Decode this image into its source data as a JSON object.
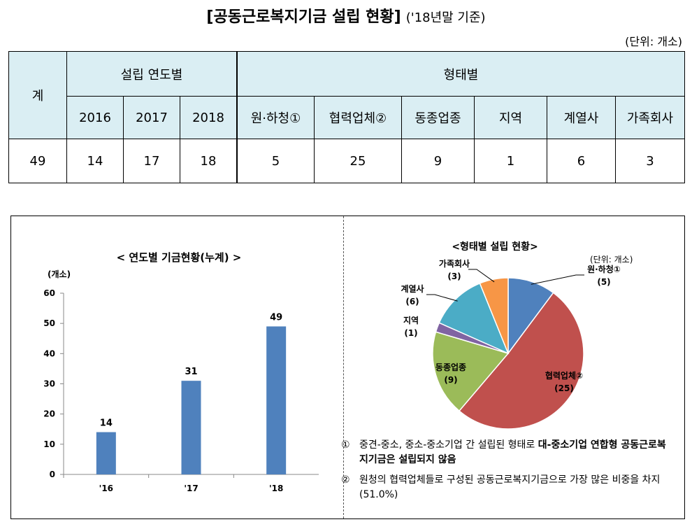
{
  "header": {
    "title": "[공동근로복지기금 설립 현황]",
    "subtitle": "('18년말 기준)",
    "unit": "(단위: 개소)"
  },
  "table": {
    "total_label": "계",
    "group_year": "설립 연도별",
    "group_type": "형태별",
    "years": [
      "2016",
      "2017",
      "2018"
    ],
    "types": [
      "원·하청①",
      "협력업체②",
      "동종업종",
      "지역",
      "계열사",
      "가족회사"
    ],
    "row": {
      "total": "49",
      "years": [
        "14",
        "17",
        "18"
      ],
      "types": [
        "5",
        "25",
        "9",
        "1",
        "6",
        "3"
      ]
    }
  },
  "chart_data": [
    {
      "type": "bar",
      "title": "< 연도별 기금현황(누계) >",
      "ylabel": "(개소)",
      "categories": [
        "'16",
        "'17",
        "'18"
      ],
      "values": [
        14,
        31,
        49
      ],
      "ylim": [
        0,
        60
      ],
      "yticks": [
        0,
        10,
        20,
        30,
        40,
        50,
        60
      ],
      "color": "#4f81bd",
      "grid": false
    },
    {
      "type": "pie",
      "title": "<형태별 설립 현황>",
      "unit": "(단위: 개소)",
      "slices": [
        {
          "label": "원·하청①",
          "value": 5,
          "value_label": "(5)",
          "color": "#4f81bd"
        },
        {
          "label": "협력업체②",
          "value": 25,
          "value_label": "(25)",
          "color": "#c0504d"
        },
        {
          "label": "동종업종",
          "value": 9,
          "value_label": "(9)",
          "color": "#9bbb59"
        },
        {
          "label": "지역",
          "value": 1,
          "value_label": "(1)",
          "color": "#8064a2"
        },
        {
          "label": "계열사",
          "value": 6,
          "value_label": "(6)",
          "color": "#4bacc6"
        },
        {
          "label": "가족회사",
          "value": 3,
          "value_label": "(3)",
          "color": "#f79646"
        }
      ]
    }
  ],
  "notes": [
    {
      "num": "①",
      "text_a": "중견-중소, 중소-중소기업 간 설립된 형태로 ",
      "text_b": "대-중소기업 연합형 공동근로복지기금은 설립되지 않음"
    },
    {
      "num": "②",
      "text_a": "원청의 협력업체들로 구성된 공동근로복지기금으로 가장 많은 비중을 차지(51.0%)",
      "text_b": ""
    }
  ]
}
